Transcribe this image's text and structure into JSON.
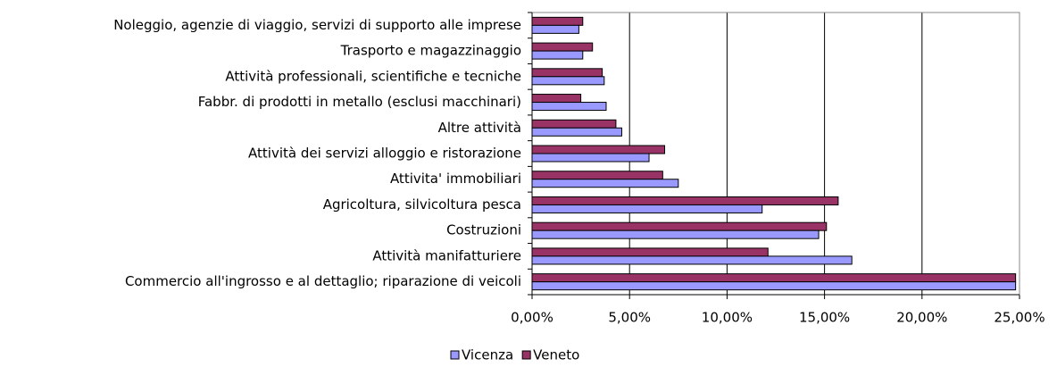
{
  "chart_data": {
    "type": "hbar",
    "categories": [
      "Noleggio, agenzie di viaggio, servizi di supporto alle imprese",
      "Trasporto e magazzinaggio",
      "Attività professionali, scientifiche e tecniche",
      "Fabbr. di prodotti in metallo (esclusi macchinari)",
      "Altre attività",
      "Attività dei servizi alloggio e ristorazione",
      "Attivita' immobiliari",
      "Agricoltura, silvicoltura pesca",
      "Costruzioni",
      "Attività manifatturiere",
      "Commercio all'ingrosso e al dettaglio; riparazione di veicoli"
    ],
    "series": [
      {
        "name": "Vicenza",
        "color": "#9999ff",
        "values": [
          2.4,
          2.6,
          3.7,
          3.8,
          4.6,
          6.0,
          7.5,
          11.8,
          14.7,
          16.4,
          24.8
        ]
      },
      {
        "name": "Veneto",
        "color": "#993366",
        "values": [
          2.6,
          3.1,
          3.6,
          2.5,
          4.3,
          6.8,
          6.7,
          15.7,
          15.1,
          12.1,
          24.8
        ]
      }
    ],
    "xlim": [
      0,
      25
    ],
    "xticks": [
      {
        "value": 0,
        "label": "0,00%"
      },
      {
        "value": 5,
        "label": "5,00%"
      },
      {
        "value": 10,
        "label": "10,00%"
      },
      {
        "value": 15,
        "label": "15,00%"
      },
      {
        "value": 20,
        "label": "20,00%"
      },
      {
        "value": 25,
        "label": "25,00%"
      }
    ],
    "grid": true,
    "legend": "bottom"
  }
}
